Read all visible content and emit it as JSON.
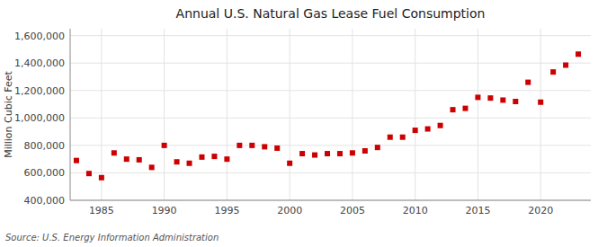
{
  "chart_data": {
    "type": "scatter",
    "title": "Annual U.S. Natural Gas Lease Fuel Consumption",
    "ylabel": "Million Cubic Feet",
    "source": "Source: U.S. Energy Information Administration",
    "x": [
      1983,
      1984,
      1985,
      1986,
      1987,
      1988,
      1989,
      1990,
      1991,
      1992,
      1993,
      1994,
      1995,
      1996,
      1997,
      1998,
      1999,
      2000,
      2001,
      2002,
      2003,
      2004,
      2005,
      2006,
      2007,
      2008,
      2009,
      2010,
      2011,
      2012,
      2013,
      2014,
      2015,
      2016,
      2017,
      2018,
      2019,
      2020,
      2021,
      2022,
      2023
    ],
    "values": [
      690000,
      595000,
      565000,
      745000,
      700000,
      695000,
      640000,
      800000,
      680000,
      670000,
      715000,
      720000,
      700000,
      800000,
      800000,
      790000,
      780000,
      670000,
      740000,
      730000,
      740000,
      740000,
      745000,
      760000,
      785000,
      860000,
      860000,
      910000,
      920000,
      945000,
      1060000,
      1070000,
      1150000,
      1145000,
      1130000,
      1120000,
      1260000,
      1115000,
      1335000,
      1385000,
      1465000
    ],
    "color": "#cc0000",
    "marker": "square",
    "xlim": [
      1982.5,
      2024
    ],
    "xticks": [
      1985,
      1990,
      1995,
      2000,
      2005,
      2010,
      2015,
      2020
    ],
    "ylim": [
      400000,
      1650000
    ],
    "yticks": [
      {
        "value": 400000,
        "label": "400,000"
      },
      {
        "value": 600000,
        "label": "600,000"
      },
      {
        "value": 800000,
        "label": "800,000"
      },
      {
        "value": 1000000,
        "label": "1,000,000"
      },
      {
        "value": 1200000,
        "label": "1,200,000"
      },
      {
        "value": 1400000,
        "label": "1,400,000"
      },
      {
        "value": 1600000,
        "label": "1,600,000"
      }
    ],
    "grid": true
  }
}
